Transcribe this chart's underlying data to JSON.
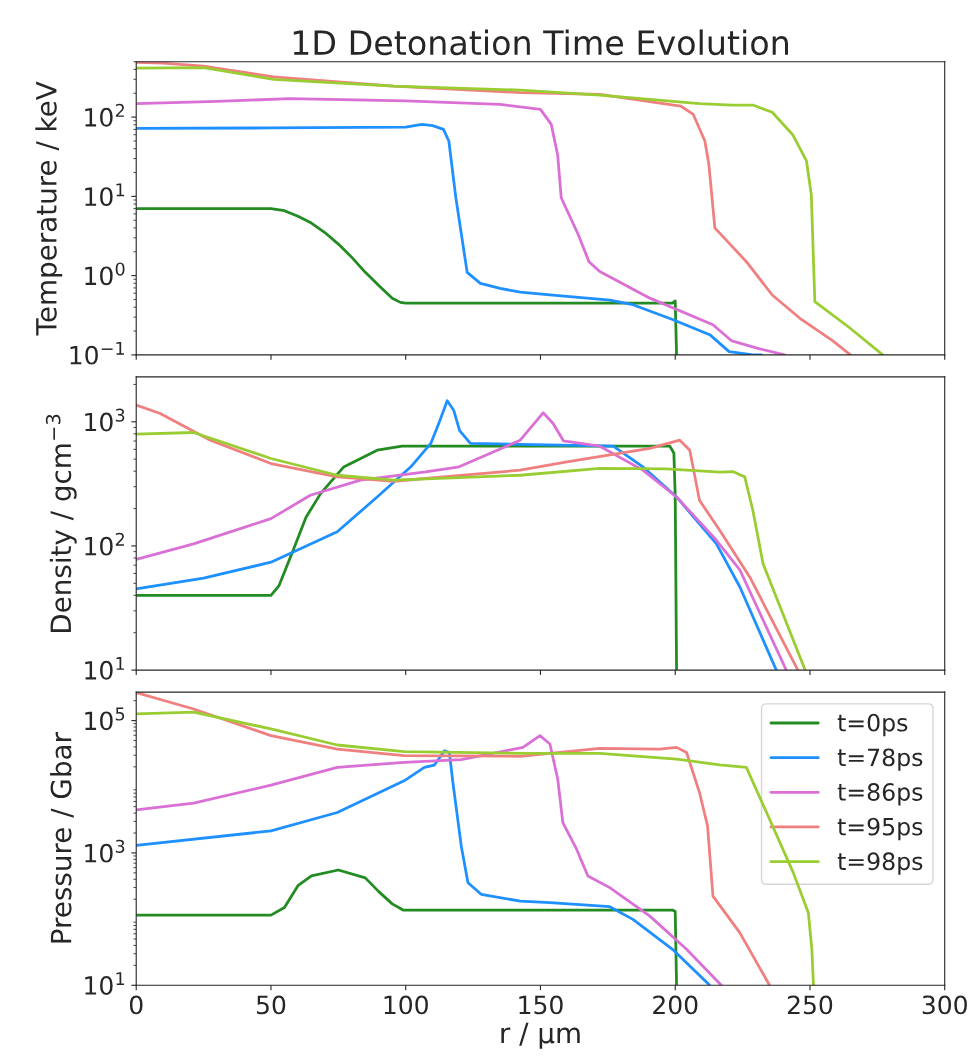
{
  "chart_data": [
    {
      "type": "line",
      "title": "1D Detonation Time Evolution",
      "ylabel": "Temperature / keV",
      "log": "y",
      "xlim": [
        0,
        300
      ],
      "xticks": [
        0,
        50,
        100,
        150,
        200,
        250,
        300
      ],
      "ylim": [
        0.1,
        500
      ],
      "yticks": [
        {
          "value": 0.1,
          "label": "10$^{−1}$"
        },
        {
          "value": 1,
          "label": "10$^{0}$"
        },
        {
          "value": 10,
          "label": "10$^{1}$"
        },
        {
          "value": 100,
          "label": "10$^{2}$"
        }
      ],
      "tick_labels": "y",
      "grid": false,
      "series": [
        {
          "color": "#228b22",
          "x": [
            0,
            50,
            55,
            60,
            65,
            70,
            75,
            80,
            85,
            90,
            95,
            98,
            100,
            199,
            200,
            200.5
          ],
          "values": [
            7,
            7,
            6.6,
            5.6,
            4.6,
            3.5,
            2.5,
            1.7,
            1.1,
            0.75,
            0.52,
            0.46,
            0.45,
            0.45,
            0.48,
            0.1
          ]
        },
        {
          "color": "#1e90ff",
          "x": [
            0,
            50,
            100,
            106,
            110,
            114,
            116,
            118.6,
            122.8,
            127.7,
            135,
            142.5,
            153.5,
            175.7,
            184.3,
            199,
            212.8,
            220,
            228.8,
            232
          ],
          "values": [
            72,
            73,
            75,
            81,
            78,
            70,
            50,
            9.6,
            1.1,
            0.8,
            0.69,
            0.62,
            0.57,
            0.49,
            0.43,
            0.28,
            0.18,
            0.11,
            0.1,
            0.1
          ]
        },
        {
          "color": "#da70d6",
          "x": [
            0,
            30,
            57,
            100,
            135,
            150,
            154,
            156.4,
            157.7,
            164,
            168,
            172,
            190.6,
            214,
            221,
            231,
            240.6
          ],
          "values": [
            148,
            158,
            171,
            160,
            145,
            125,
            81,
            33,
            9.6,
            3.3,
            1.5,
            1.13,
            0.52,
            0.24,
            0.15,
            0.12,
            0.1
          ]
        },
        {
          "color": "#f08080",
          "x": [
            0,
            10,
            25,
            51,
            95.5,
            142.5,
            172,
            202,
            206.7,
            211,
            212.5,
            214.7,
            226.4,
            236,
            246.8,
            258.5,
            265
          ],
          "values": [
            490,
            480,
            440,
            321,
            246,
            204,
            194,
            138,
            108,
            50,
            25,
            4.0,
            1.5,
            0.57,
            0.28,
            0.15,
            0.1
          ]
        },
        {
          "color": "#9acd32",
          "x": [
            0,
            25,
            51,
            95.5,
            142.5,
            172,
            209,
            221,
            228.8,
            236,
            243.6,
            248.7,
            250.5,
            251.8,
            264.7,
            277
          ],
          "values": [
            414,
            420,
            300,
            246,
            219,
            190,
            148,
            142,
            142,
            115,
            60,
            28,
            10.5,
            0.47,
            0.22,
            0.1
          ]
        }
      ]
    },
    {
      "type": "line",
      "ylabel": "Density / gcm$^{−3}$",
      "log": "y",
      "xlim": [
        0,
        300
      ],
      "xticks": [
        0,
        50,
        100,
        150,
        200,
        250,
        300
      ],
      "ylim": [
        10,
        2300
      ],
      "yticks": [
        {
          "value": 10,
          "label": "10$^{1}$"
        },
        {
          "value": 100,
          "label": "10$^{2}$"
        },
        {
          "value": 1000,
          "label": "10$^{3}$"
        }
      ],
      "tick_labels": "y",
      "grid": false,
      "series": [
        {
          "color": "#228b22",
          "x": [
            0,
            50,
            53,
            58.2,
            63,
            68.4,
            77,
            89.4,
            98.6,
            198,
            199.5,
            200,
            200.5
          ],
          "values": [
            40,
            40,
            48,
            92,
            170,
            264,
            433,
            590,
            636,
            636,
            560,
            250,
            10
          ]
        },
        {
          "color": "#1e90ff",
          "x": [
            0,
            25,
            50,
            74.6,
            89.4,
            101.9,
            109.3,
            112.5,
            115.4,
            117.8,
            120,
            124,
            177,
            188,
            200.5,
            215.3,
            224,
            237.5
          ],
          "values": [
            45,
            55,
            74,
            130,
            248,
            434,
            669,
            1000,
            1476,
            1240,
            850,
            669,
            636,
            434,
            248,
            104,
            46.7,
            10
          ]
        },
        {
          "color": "#da70d6",
          "x": [
            0,
            21.3,
            50,
            64.6,
            83.2,
            107.4,
            119.8,
            142.5,
            143.5,
            151,
            154.7,
            158.5,
            172,
            188,
            200.5,
            215.3,
            224,
            241.2
          ],
          "values": [
            78,
            104,
            166,
            256,
            339,
            395,
            434,
            711,
            757,
            1182,
            970,
            703,
            636,
            408,
            248,
            111,
            64,
            10
          ]
        },
        {
          "color": "#f08080",
          "x": [
            0,
            8.9,
            27.5,
            50,
            74.6,
            95.6,
            142.5,
            159.8,
            190.6,
            201.7,
            205.4,
            209,
            216.5,
            227.7,
            245.5
          ],
          "values": [
            1362,
            1167,
            711,
            461,
            360,
            332,
            408,
            475,
            610,
            711,
            590,
            233,
            134,
            56,
            10
          ]
        },
        {
          "color": "#9acd32",
          "x": [
            0,
            21.3,
            50,
            74.6,
            95.6,
            142.5,
            172,
            196.7,
            216.5,
            221.4,
            225.8,
            228.8,
            232.6,
            248.2
          ],
          "values": [
            795,
            820,
            506,
            371,
            339,
            371,
            421,
            418,
            394,
            397,
            360,
            194,
            72,
            10
          ]
        }
      ]
    },
    {
      "type": "line",
      "ylabel": "Pressure / Gbar",
      "xlabel": "r / µm",
      "log": "y",
      "xlim": [
        0,
        300
      ],
      "xticks": [
        0,
        50,
        100,
        150,
        200,
        250,
        300
      ],
      "ylim": [
        10,
        270000
      ],
      "yticks": [
        {
          "value": 10,
          "label": "10$^{1}$"
        },
        {
          "value": 1000,
          "label": "10$^{3}$"
        },
        {
          "value": 100000,
          "label": "10$^{5}$"
        }
      ],
      "grid": false,
      "legend": "top right",
      "series": [
        {
          "name": "t=0ps",
          "color": "#228b22",
          "x": [
            0,
            50,
            55,
            60,
            65,
            75,
            85,
            90,
            95,
            99,
            199,
            200,
            200.5
          ],
          "values": [
            115,
            115,
            150,
            320,
            450,
            552,
            420,
            260,
            170,
            137,
            137,
            130,
            10
          ]
        },
        {
          "name": "t=78ps",
          "color": "#1e90ff",
          "x": [
            0,
            50,
            74.6,
            99.4,
            106.9,
            110.6,
            114.4,
            116.2,
            117.5,
            120.6,
            123.1,
            128,
            142.5,
            153.5,
            175.7,
            184.3,
            199,
            212.8
          ],
          "values": [
            1306,
            2153,
            4080,
            12300,
            19600,
            21200,
            35100,
            33000,
            11600,
            1276,
            355,
            237,
            187,
            177,
            154,
            99,
            35,
            10
          ]
        },
        {
          "name": "t=86ps",
          "color": "#da70d6",
          "x": [
            0,
            21.3,
            50,
            74.6,
            99.4,
            120.6,
            143.5,
            149.8,
            153.5,
            156.4,
            158.3,
            163.4,
            167.6,
            175.7,
            190.6,
            204.2,
            217.1
          ],
          "values": [
            4490,
            5660,
            10600,
            19600,
            23400,
            25700,
            39400,
            59300,
            44300,
            13100,
            2880,
            1138,
            449,
            299,
            111,
            35,
            10
          ]
        },
        {
          "name": "t=95ps",
          "color": "#f08080",
          "x": [
            0,
            21.3,
            50,
            74.6,
            99.4,
            142.5,
            172,
            194.3,
            200.5,
            204.2,
            209,
            212,
            214,
            224,
            235
          ],
          "values": [
            265000,
            150000,
            59300,
            37200,
            29500,
            28900,
            38000,
            37200,
            39400,
            33000,
            8200,
            2570,
            223,
            62,
            10
          ]
        },
        {
          "name": "t=98ps",
          "color": "#9acd32",
          "x": [
            0,
            21.3,
            50,
            74.6,
            99.4,
            142.5,
            172,
            200.5,
            216.5,
            226.4,
            233.9,
            243.8,
            249.4,
            250.7,
            251.3
          ],
          "values": [
            126000,
            134000,
            74800,
            42800,
            33900,
            32000,
            32000,
            26200,
            21500,
            19600,
            4080,
            504,
            125,
            35,
            10
          ]
        }
      ]
    }
  ]
}
